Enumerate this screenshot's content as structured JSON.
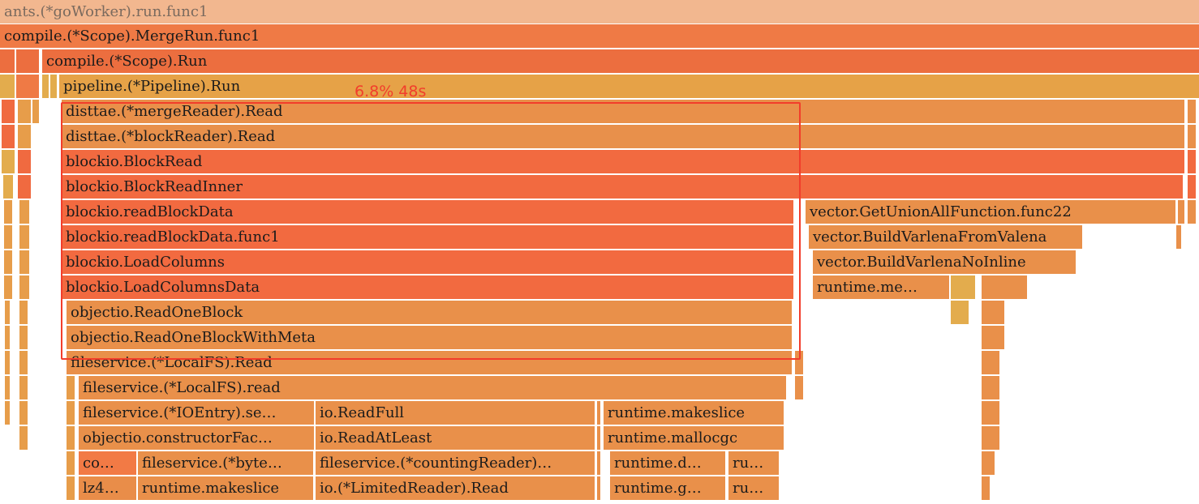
{
  "frames": [
    {
      "name": "ants.(*goWorker).run.func1"
    },
    {
      "name": "compile.(*Scope).MergeRun.func1"
    },
    {
      "name": "compile.(*Scope).Run"
    },
    {
      "name": "pipeline.(*Pipeline).Run"
    },
    {
      "name": "disttae.(*mergeReader).Read"
    },
    {
      "name": "disttae.(*blockReader).Read"
    },
    {
      "name": "blockio.BlockRead"
    },
    {
      "name": "blockio.BlockReadInner"
    },
    {
      "name": "blockio.readBlockData"
    },
    {
      "name": "vector.GetUnionAllFunction.func22"
    },
    {
      "name": "blockio.readBlockData.func1"
    },
    {
      "name": "vector.BuildVarlenaFromValena"
    },
    {
      "name": "blockio.LoadColumns"
    },
    {
      "name": "vector.BuildVarlenaNoInline"
    },
    {
      "name": "blockio.LoadColumnsData"
    },
    {
      "name": "runtime.me…"
    },
    {
      "name": "objectio.ReadOneBlock"
    },
    {
      "name": "objectio.ReadOneBlockWithMeta"
    },
    {
      "name": "fileservice.(*LocalFS).Read"
    },
    {
      "name": "fileservice.(*LocalFS).read"
    },
    {
      "name": "fileservice.(*IOEntry).se…"
    },
    {
      "name": "io.ReadFull"
    },
    {
      "name": "runtime.makeslice"
    },
    {
      "name": "objectio.constructorFac…"
    },
    {
      "name": "io.ReadAtLeast"
    },
    {
      "name": "runtime.mallocgc"
    },
    {
      "name": "co…"
    },
    {
      "name": "fileservice.(*byte…"
    },
    {
      "name": "fileservice.(*countingReader)…"
    },
    {
      "name": "runtime.d…"
    },
    {
      "name": "ru…"
    },
    {
      "name": "lz4…"
    },
    {
      "name": "runtime.makeslice"
    },
    {
      "name": "io.(*LimitedReader).Read"
    },
    {
      "name": "runtime.g…"
    },
    {
      "name": "ru…"
    }
  ],
  "selection": {
    "label": "6.8% 48s"
  },
  "colors": {
    "highlight": "#f23d2b"
  }
}
